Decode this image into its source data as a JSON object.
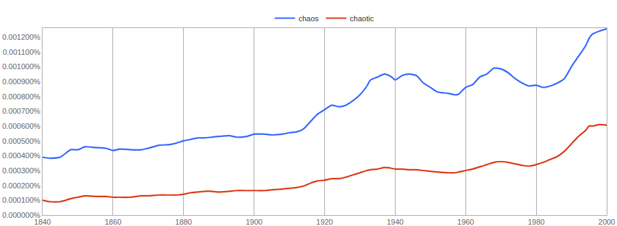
{
  "chart_data": {
    "type": "line",
    "x": [
      1840,
      1842,
      1845,
      1848,
      1850,
      1852,
      1855,
      1858,
      1860,
      1862,
      1865,
      1868,
      1870,
      1873,
      1876,
      1878,
      1880,
      1882,
      1884,
      1886,
      1888,
      1890,
      1893,
      1895,
      1898,
      1900,
      1903,
      1905,
      1908,
      1910,
      1912,
      1914,
      1916,
      1918,
      1920,
      1922,
      1924,
      1926,
      1928,
      1930,
      1932,
      1933,
      1935,
      1937,
      1939,
      1940,
      1942,
      1944,
      1946,
      1948,
      1950,
      1952,
      1955,
      1957,
      1958,
      1960,
      1962,
      1964,
      1966,
      1968,
      1970,
      1972,
      1974,
      1976,
      1978,
      1980,
      1982,
      1984,
      1986,
      1988,
      1990,
      1992,
      1994,
      1995,
      1996,
      1998,
      2000
    ],
    "series": [
      {
        "name": "chaos",
        "color": "#3366ff",
        "values": [
          0.00039,
          0.000383,
          0.00039,
          0.00044,
          0.00044,
          0.00046,
          0.000455,
          0.00045,
          0.000435,
          0.000445,
          0.00044,
          0.00044,
          0.00045,
          0.00047,
          0.000475,
          0.000485,
          0.0005,
          0.00051,
          0.00052,
          0.00052,
          0.000525,
          0.00053,
          0.000535,
          0.000525,
          0.00053,
          0.000545,
          0.000545,
          0.00054,
          0.000545,
          0.000555,
          0.00056,
          0.00058,
          0.00063,
          0.00068,
          0.00071,
          0.00074,
          0.00073,
          0.00074,
          0.00077,
          0.00081,
          0.00087,
          0.00091,
          0.00093,
          0.00095,
          0.00093,
          0.00091,
          0.00094,
          0.00095,
          0.00094,
          0.00089,
          0.00086,
          0.00083,
          0.00082,
          0.00081,
          0.000815,
          0.00086,
          0.00088,
          0.00093,
          0.00095,
          0.00099,
          0.000985,
          0.00096,
          0.00092,
          0.00089,
          0.00087,
          0.000875,
          0.00086,
          0.00087,
          0.00089,
          0.00092,
          0.001,
          0.00107,
          0.00114,
          0.00119,
          0.00122,
          0.00124,
          0.001255
        ]
      },
      {
        "name": "chaotic",
        "color": "#dc3912",
        "values": [
          0.0001,
          9e-05,
          9e-05,
          0.00011,
          0.00012,
          0.00013,
          0.000125,
          0.000125,
          0.00012,
          0.00012,
          0.00012,
          0.00013,
          0.00013,
          0.000135,
          0.000135,
          0.000135,
          0.00014,
          0.00015,
          0.000155,
          0.00016,
          0.00016,
          0.000155,
          0.00016,
          0.000165,
          0.000165,
          0.000165,
          0.000165,
          0.00017,
          0.000175,
          0.00018,
          0.000185,
          0.000195,
          0.000215,
          0.00023,
          0.000235,
          0.000245,
          0.000245,
          0.000255,
          0.00027,
          0.000285,
          0.0003,
          0.000305,
          0.00031,
          0.00032,
          0.000315,
          0.00031,
          0.00031,
          0.000305,
          0.000305,
          0.0003,
          0.000295,
          0.00029,
          0.000285,
          0.000285,
          0.00029,
          0.0003,
          0.00031,
          0.000325,
          0.00034,
          0.000355,
          0.00036,
          0.000355,
          0.000345,
          0.000335,
          0.00033,
          0.00034,
          0.000355,
          0.000375,
          0.000395,
          0.00043,
          0.00048,
          0.00053,
          0.00057,
          0.0006,
          0.0006,
          0.00061,
          0.000605
        ]
      }
    ],
    "xlim": [
      1840,
      2000
    ],
    "xticks": [
      1840,
      1860,
      1880,
      1900,
      1920,
      1940,
      1960,
      1980,
      2000
    ],
    "ylim": [
      0,
      0.00126
    ],
    "yticks": [
      {
        "value": 0,
        "label": "0.000000%"
      },
      {
        "value": 0.0001,
        "label": "0.000100%"
      },
      {
        "value": 0.0002,
        "label": "0.000200%"
      },
      {
        "value": 0.0003,
        "label": "0.000300%"
      },
      {
        "value": 0.0004,
        "label": "0.000400%"
      },
      {
        "value": 0.0005,
        "label": "0.000500%"
      },
      {
        "value": 0.0006,
        "label": "0.000600%"
      },
      {
        "value": 0.0007,
        "label": "0.000700%"
      },
      {
        "value": 0.0008,
        "label": "0.000800%"
      },
      {
        "value": 0.0009,
        "label": "0.000900%"
      },
      {
        "value": 0.001,
        "label": "0.001000%"
      },
      {
        "value": 0.0011,
        "label": "0.001100%"
      },
      {
        "value": 0.0012,
        "label": "0.001200%"
      }
    ],
    "grid": "x",
    "legend": "top"
  }
}
